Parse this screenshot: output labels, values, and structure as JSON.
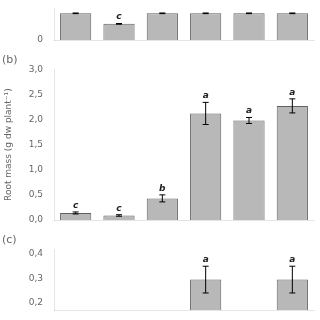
{
  "chart_data": [
    {
      "type": "bar",
      "categories": [
        null,
        null,
        null,
        null,
        null,
        null
      ],
      "values": [
        3.8,
        2.3,
        3.8,
        3.8,
        3.8,
        3.8
      ],
      "errors": [
        0.05,
        0.05,
        0.05,
        0.05,
        0.05,
        0.05
      ],
      "value_labels": [
        null,
        "c",
        null,
        null,
        null,
        null
      ],
      "data_labels": true,
      "color": "#b8b8b8",
      "ylim": [
        0.0,
        4.5
      ],
      "yticks": [
        0
      ],
      "grid": false,
      "tick_labels": "y"
    },
    {
      "type": "bar",
      "title": "(b)",
      "y_label": "Root mass (g dw plant⁻¹)",
      "categories": [
        null,
        null,
        null,
        null,
        null,
        null
      ],
      "values": [
        0.14,
        0.09,
        0.43,
        2.12,
        1.98,
        2.27
      ],
      "errors": [
        0.02,
        0.015,
        0.07,
        0.22,
        0.06,
        0.14
      ],
      "value_labels": [
        "c",
        "c",
        "b",
        "a",
        "a",
        "a"
      ],
      "data_labels": true,
      "color": "#b8b8b8",
      "ylim": [
        0.0,
        3.0
      ],
      "yticks": [
        {
          "value": 0.0,
          "label": "0,0"
        },
        {
          "value": 0.5,
          "label": "0,5"
        },
        {
          "value": 1.0,
          "label": "1,0"
        },
        {
          "value": 1.5,
          "label": "1,5"
        },
        {
          "value": 2.0,
          "label": "2,0"
        },
        {
          "value": 2.5,
          "label": "2,5"
        },
        {
          "value": 3.0,
          "label": "3,0"
        }
      ],
      "grid": false,
      "tick_labels": "y"
    },
    {
      "type": "bar",
      "title": "(c)",
      "categories": [
        null,
        null,
        null,
        null,
        null,
        null
      ],
      "values": [
        null,
        null,
        null,
        0.295,
        null,
        0.295
      ],
      "errors": [
        null,
        null,
        null,
        0.055,
        null,
        0.055
      ],
      "value_labels": [
        null,
        null,
        null,
        "a",
        null,
        "a"
      ],
      "data_labels": true,
      "color": "#b8b8b8",
      "ylim": [
        0.17,
        0.42
      ],
      "yticks": [
        {
          "value": 0.2,
          "label": "0,2"
        },
        {
          "value": 0.3,
          "label": "0,3"
        },
        {
          "value": 0.4,
          "label": "0,4"
        }
      ],
      "grid": false,
      "tick_labels": "y"
    }
  ]
}
